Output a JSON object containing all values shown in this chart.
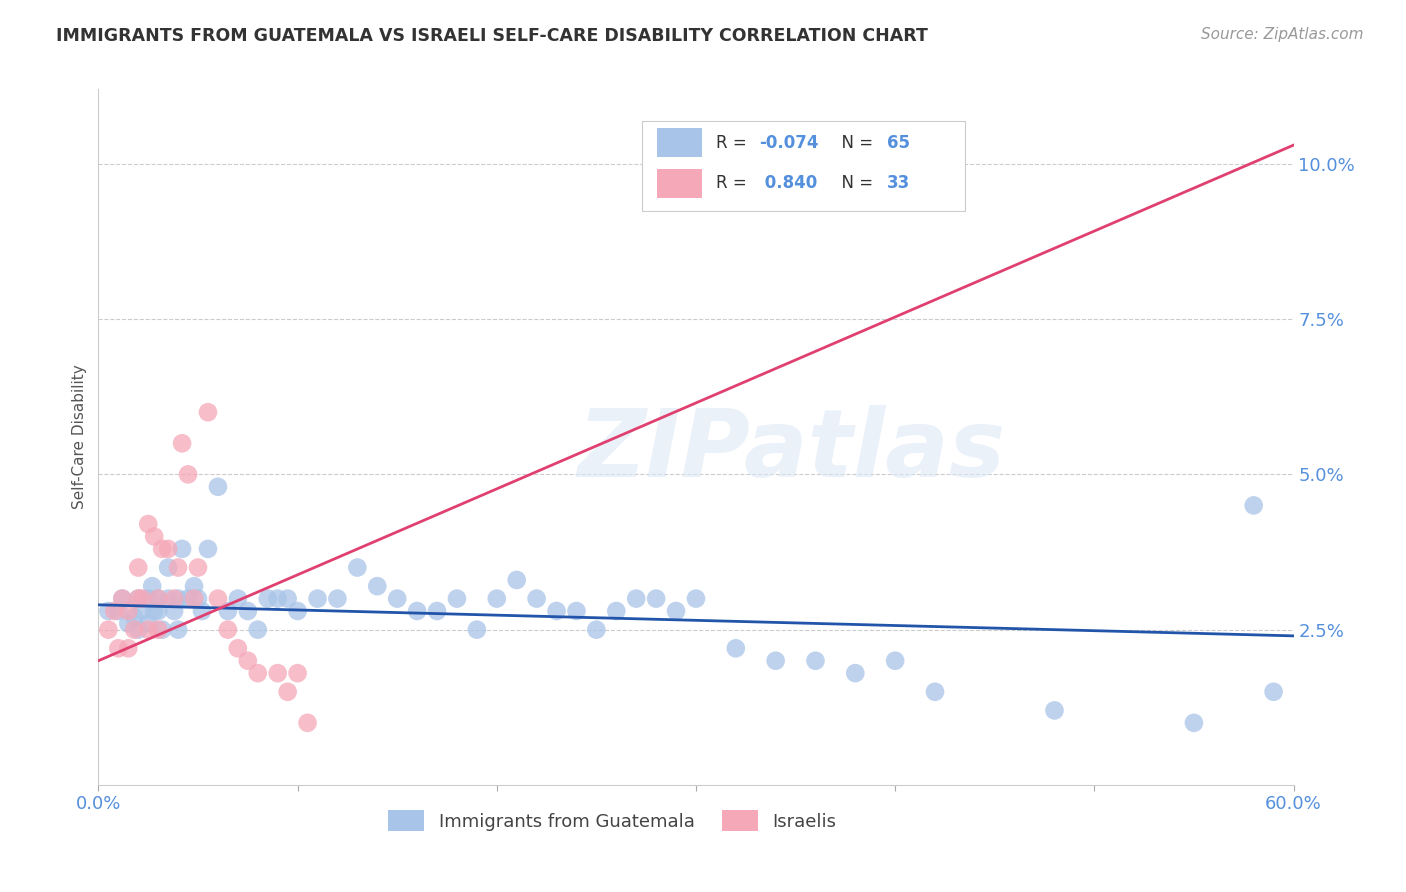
{
  "title": "IMMIGRANTS FROM GUATEMALA VS ISRAELI SELF-CARE DISABILITY CORRELATION CHART",
  "source": "Source: ZipAtlas.com",
  "xlabel_blue": "Immigrants from Guatemala",
  "xlabel_pink": "Israelis",
  "ylabel": "Self-Care Disability",
  "watermark": "ZIPatlas",
  "xlim": [
    0.0,
    0.6
  ],
  "ylim": [
    0.0,
    0.112
  ],
  "yticks": [
    0.025,
    0.05,
    0.075,
    0.1
  ],
  "ytick_labels": [
    "2.5%",
    "5.0%",
    "7.5%",
    "10.0%"
  ],
  "xticks": [
    0.0,
    0.1,
    0.2,
    0.3,
    0.4,
    0.5,
    0.6
  ],
  "xtick_labels": [
    "0.0%",
    "",
    "",
    "",
    "",
    "",
    "60.0%"
  ],
  "blue_R": -0.074,
  "blue_N": 65,
  "pink_R": 0.84,
  "pink_N": 33,
  "blue_color": "#a8c4e8",
  "pink_color": "#f5a8b8",
  "blue_line_color": "#2255aa",
  "pink_line_color": "#e04070",
  "title_color": "#333333",
  "source_color": "#999999",
  "axis_color": "#5590dd",
  "blue_scatter_x": [
    0.005,
    0.01,
    0.012,
    0.015,
    0.018,
    0.02,
    0.02,
    0.022,
    0.025,
    0.025,
    0.027,
    0.028,
    0.03,
    0.03,
    0.032,
    0.035,
    0.035,
    0.038,
    0.04,
    0.04,
    0.042,
    0.045,
    0.048,
    0.05,
    0.052,
    0.055,
    0.06,
    0.065,
    0.07,
    0.075,
    0.08,
    0.085,
    0.09,
    0.095,
    0.1,
    0.11,
    0.12,
    0.13,
    0.14,
    0.15,
    0.16,
    0.17,
    0.18,
    0.19,
    0.2,
    0.21,
    0.22,
    0.23,
    0.24,
    0.25,
    0.26,
    0.27,
    0.28,
    0.29,
    0.3,
    0.32,
    0.34,
    0.36,
    0.38,
    0.4,
    0.42,
    0.48,
    0.55,
    0.58,
    0.59
  ],
  "blue_scatter_y": [
    0.028,
    0.028,
    0.03,
    0.026,
    0.027,
    0.025,
    0.03,
    0.028,
    0.026,
    0.03,
    0.032,
    0.028,
    0.028,
    0.03,
    0.025,
    0.035,
    0.03,
    0.028,
    0.03,
    0.025,
    0.038,
    0.03,
    0.032,
    0.03,
    0.028,
    0.038,
    0.048,
    0.028,
    0.03,
    0.028,
    0.025,
    0.03,
    0.03,
    0.03,
    0.028,
    0.03,
    0.03,
    0.035,
    0.032,
    0.03,
    0.028,
    0.028,
    0.03,
    0.025,
    0.03,
    0.033,
    0.03,
    0.028,
    0.028,
    0.025,
    0.028,
    0.03,
    0.03,
    0.028,
    0.03,
    0.022,
    0.02,
    0.02,
    0.018,
    0.02,
    0.015,
    0.012,
    0.01,
    0.045,
    0.015
  ],
  "pink_scatter_x": [
    0.005,
    0.008,
    0.01,
    0.012,
    0.015,
    0.015,
    0.018,
    0.02,
    0.02,
    0.022,
    0.025,
    0.025,
    0.028,
    0.03,
    0.03,
    0.032,
    0.035,
    0.038,
    0.04,
    0.042,
    0.045,
    0.048,
    0.05,
    0.055,
    0.06,
    0.065,
    0.07,
    0.075,
    0.08,
    0.09,
    0.095,
    0.1,
    0.105
  ],
  "pink_scatter_y": [
    0.025,
    0.028,
    0.022,
    0.03,
    0.022,
    0.028,
    0.025,
    0.03,
    0.035,
    0.03,
    0.025,
    0.042,
    0.04,
    0.025,
    0.03,
    0.038,
    0.038,
    0.03,
    0.035,
    0.055,
    0.05,
    0.03,
    0.035,
    0.06,
    0.03,
    0.025,
    0.022,
    0.02,
    0.018,
    0.018,
    0.015,
    0.018,
    0.01
  ],
  "blue_line_x": [
    0.0,
    0.6
  ],
  "blue_line_y": [
    0.029,
    0.024
  ],
  "pink_line_x": [
    0.0,
    0.6
  ],
  "pink_line_y": [
    0.02,
    0.103
  ]
}
